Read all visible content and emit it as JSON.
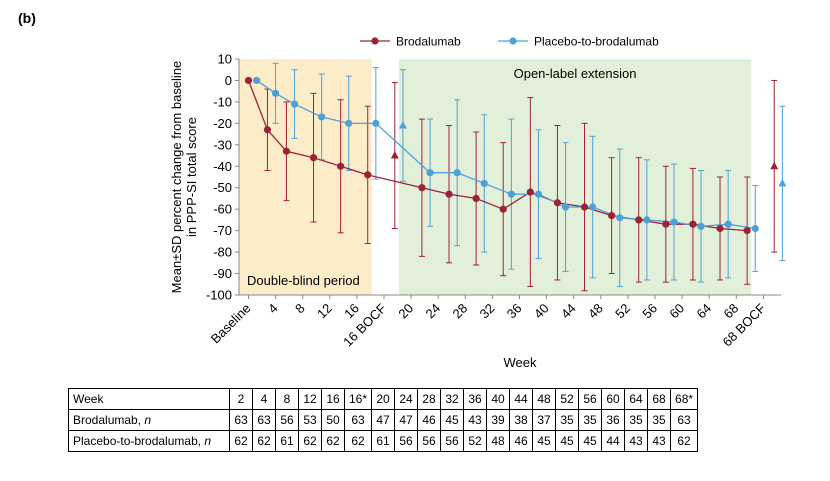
{
  "panel_label": "(b)",
  "chart_data": {
    "type": "line",
    "xlabel": "Week",
    "ylabel_lines": [
      "Mean±SD percent change from baseline",
      "in PPP-SI total score"
    ],
    "ylim": [
      -100,
      10
    ],
    "yticks": [
      10,
      0,
      -10,
      -20,
      -30,
      -40,
      -50,
      -60,
      -70,
      -80,
      -90,
      -100
    ],
    "grid": false,
    "legend_position": "top-right",
    "categories": [
      "Baseline",
      "4",
      "8",
      "12",
      "16",
      "16 BOCF",
      "20",
      "24",
      "28",
      "32",
      "36",
      "40",
      "44",
      "48",
      "52",
      "56",
      "60",
      "64",
      "68",
      "68 BOCF"
    ],
    "regions": [
      {
        "label": "Double-blind period",
        "from": "Baseline",
        "to": "16",
        "color": "#fdecc8"
      },
      {
        "label": "Open-label extension",
        "from": "20",
        "to": "68",
        "color": "#e3f0d9"
      }
    ],
    "series": [
      {
        "name": "Brodalumab",
        "color": "#9b2335",
        "marker": "circle",
        "main_x": [
          0,
          0.7,
          1.4,
          2.4,
          3.4,
          4.4,
          6.4,
          7.4,
          8.4,
          9.4,
          10.4,
          11.4,
          12.4,
          13.4,
          14.4,
          15.4,
          16.4,
          17.4,
          18.4
        ],
        "main_y": [
          0,
          -23,
          -33,
          -36,
          -40,
          -44,
          -50,
          -53,
          -55,
          -60,
          -52,
          -57,
          -59,
          -63,
          -65,
          -67,
          -67,
          -69,
          -70
        ],
        "main_sd": [
          0,
          19,
          23,
          30,
          31,
          32,
          32,
          32,
          31,
          31,
          44,
          36,
          39,
          27,
          29,
          27,
          26,
          24,
          25
        ],
        "bocf_x": [
          5.4,
          19.4
        ],
        "bocf_y": [
          -35,
          -40
        ],
        "bocf_sd": [
          34,
          40
        ]
      },
      {
        "name": "Placebo-to-brodalumab",
        "color": "#4f9fd9",
        "marker": "circle",
        "main_x": [
          0.3,
          1.0,
          1.7,
          2.7,
          3.7,
          4.7,
          6.7,
          7.7,
          8.7,
          9.7,
          10.7,
          11.7,
          12.7,
          13.7,
          14.7,
          15.7,
          16.7,
          17.7,
          18.7
        ],
        "main_y": [
          0,
          -6,
          -11,
          -17,
          -20,
          -20,
          -43,
          -43,
          -48,
          -53,
          -53,
          -59,
          -59,
          -64,
          -65,
          -66,
          -68,
          -67,
          -69
        ],
        "main_sd": [
          0,
          14,
          16,
          20,
          22,
          26,
          25,
          34,
          32,
          35,
          30,
          30,
          33,
          32,
          28,
          27,
          26,
          25,
          20
        ],
        "bocf_x": [
          5.7,
          19.7
        ],
        "bocf_y": [
          -21,
          -48
        ],
        "bocf_sd": [
          26,
          36
        ]
      }
    ]
  },
  "table": {
    "header": [
      "Week",
      "2",
      "4",
      "8",
      "12",
      "16",
      "16*",
      "20",
      "24",
      "28",
      "32",
      "36",
      "40",
      "44",
      "48",
      "52",
      "56",
      "60",
      "64",
      "68",
      "68*"
    ],
    "rows": [
      {
        "label": "Brodalumab, ",
        "label_italic": "n",
        "values": [
          "63",
          "63",
          "56",
          "53",
          "50",
          "63",
          "47",
          "47",
          "46",
          "45",
          "43",
          "39",
          "38",
          "37",
          "35",
          "35",
          "36",
          "35",
          "35",
          "63"
        ]
      },
      {
        "label": "Placebo-to-brodalumab, ",
        "label_italic": "n",
        "values": [
          "62",
          "62",
          "61",
          "62",
          "62",
          "62",
          "61",
          "56",
          "56",
          "56",
          "52",
          "48",
          "46",
          "45",
          "45",
          "45",
          "44",
          "43",
          "43",
          "62"
        ]
      }
    ]
  }
}
